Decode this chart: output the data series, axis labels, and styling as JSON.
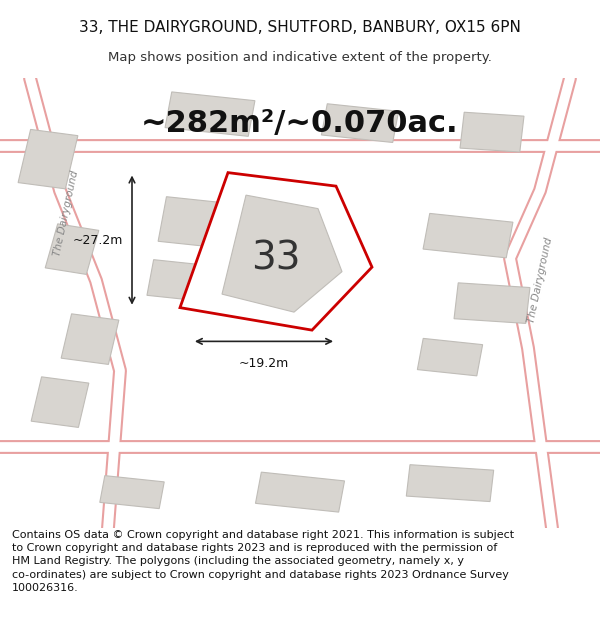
{
  "title": "33, THE DAIRYGROUND, SHUTFORD, BANBURY, OX15 6PN",
  "subtitle": "Map shows position and indicative extent of the property.",
  "area_label": "~282m²/~0.070ac.",
  "plot_number": "33",
  "width_label": "~19.2m",
  "height_label": "~27.2m",
  "bg_color": "#f5f5f5",
  "map_bg": "#f0ede8",
  "building_color": "#d8d5d0",
  "building_edge": "#c0bdb8",
  "road_color": "#ffffff",
  "highlight_plot_color": "#ffffff",
  "highlight_plot_edge": "#cc0000",
  "road_outline": "#e8a0a0",
  "street_label_1": "The Dairyground",
  "street_label_2": "The Dairyground",
  "footer_text": "Contains OS data © Crown copyright and database right 2021. This information is subject to Crown copyright and database rights 2023 and is reproduced with the permission of HM Land Registry. The polygons (including the associated geometry, namely x, y co-ordinates) are subject to Crown copyright and database rights 2023 Ordnance Survey 100026316.",
  "title_fontsize": 11,
  "subtitle_fontsize": 9.5,
  "area_fontsize": 22,
  "plot_num_fontsize": 28,
  "footer_fontsize": 8
}
